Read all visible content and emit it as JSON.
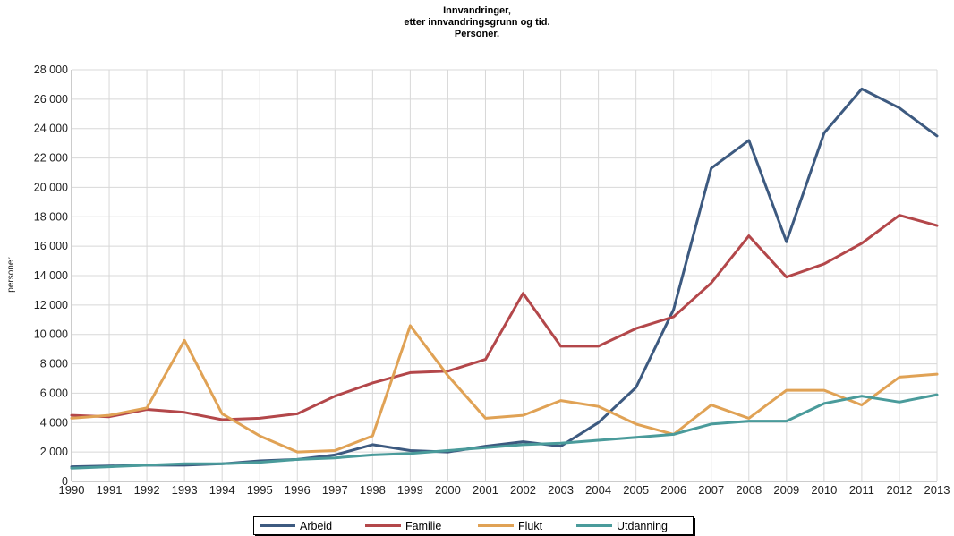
{
  "title_lines": [
    "Innvandringer,",
    "etter innvandringsgrunn og tid.",
    "Personer."
  ],
  "chart_data": {
    "type": "line",
    "title": "Innvandringer, etter innvandringsgrunn og tid. Personer.",
    "ylabel": "personer",
    "xlabel": "",
    "x": [
      1990,
      1991,
      1992,
      1993,
      1994,
      1995,
      1996,
      1997,
      1998,
      1999,
      2000,
      2001,
      2002,
      2003,
      2004,
      2005,
      2006,
      2007,
      2008,
      2009,
      2010,
      2011,
      2012,
      2013
    ],
    "x_labels": [
      "1990",
      "1991",
      "1992",
      "1993",
      "1994",
      "1995",
      "1996",
      "1997",
      "1998",
      "1999",
      "2000",
      "2001",
      "2002",
      "2003",
      "2004",
      "2005",
      "2006",
      "2007",
      "2008",
      "2009",
      "2010",
      "2011",
      "2012",
      "2013"
    ],
    "ylim": [
      0,
      28000
    ],
    "y_ticks": [
      0,
      2000,
      4000,
      6000,
      8000,
      10000,
      12000,
      14000,
      16000,
      18000,
      20000,
      22000,
      24000,
      26000,
      28000
    ],
    "y_tick_labels": [
      "0",
      "2 000",
      "4 000",
      "6 000",
      "8 000",
      "10 000",
      "12 000",
      "14 000",
      "16 000",
      "18 000",
      "20 000",
      "22 000",
      "24 000",
      "26 000",
      "28 000"
    ],
    "grid": true,
    "legend_position": "bottom",
    "series": [
      {
        "name": "Arbeid",
        "color": "#3d5a80",
        "values": [
          1000,
          1050,
          1100,
          1100,
          1200,
          1400,
          1500,
          1800,
          2500,
          2100,
          2000,
          2400,
          2700,
          2400,
          4000,
          6400,
          11700,
          21300,
          23200,
          16300,
          23700,
          26700,
          25400,
          23500
        ]
      },
      {
        "name": "Familie",
        "color": "#b3474a",
        "values": [
          4500,
          4400,
          4900,
          4700,
          4200,
          4300,
          4600,
          5800,
          6700,
          7400,
          7500,
          8300,
          12800,
          9200,
          9200,
          10400,
          11200,
          13500,
          16700,
          13900,
          14800,
          16200,
          18100,
          17400
        ]
      },
      {
        "name": "Flukt",
        "color": "#e0a255",
        "values": [
          4300,
          4500,
          5000,
          9600,
          4600,
          3100,
          2000,
          2100,
          3100,
          10600,
          7200,
          4300,
          4500,
          5500,
          5100,
          3900,
          3200,
          5200,
          4300,
          6200,
          6200,
          5200,
          7100,
          7300
        ]
      },
      {
        "name": "Utdanning",
        "color": "#4a9b9b",
        "values": [
          900,
          1000,
          1100,
          1200,
          1200,
          1300,
          1500,
          1600,
          1800,
          1900,
          2100,
          2300,
          2500,
          2600,
          2800,
          3000,
          3200,
          3900,
          4100,
          4100,
          5300,
          5800,
          5400,
          5900
        ]
      }
    ]
  }
}
